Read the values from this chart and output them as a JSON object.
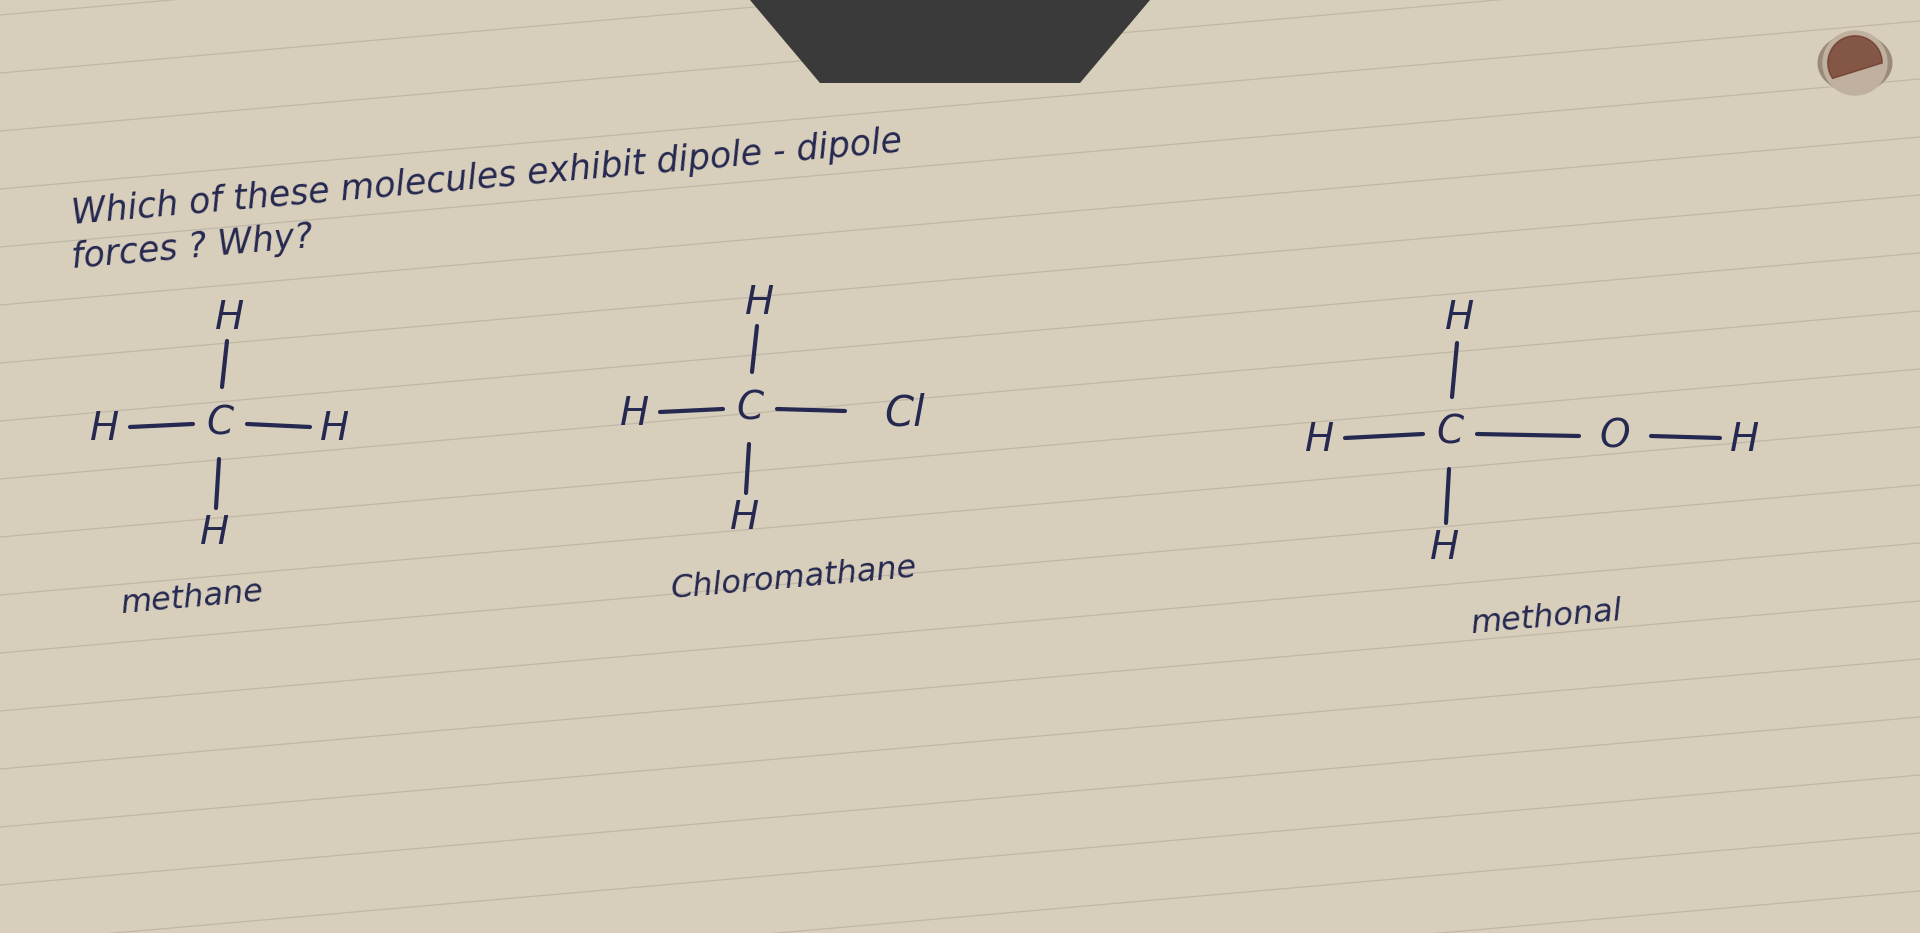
{
  "bg_color": "#c8bfaa",
  "paper_color": "#d8cebc",
  "line_color": "#b0a898",
  "ink_color": "#252850",
  "dark_patch_color": "#1a1a1a",
  "hole_outer": "#b0a090",
  "hole_inner": "#c8b8a8",
  "hole_dark": "#5a3020",
  "title_line1": "Which of these molecules exhibit dipole - dipole",
  "title_line2": "forces ? Why?",
  "molecule1_label": "methane",
  "molecule2_label": "Chloromathane",
  "molecule3_label": "methonal",
  "figsize": [
    19.2,
    9.33
  ],
  "dpi": 100,
  "rotation_deg": 5
}
